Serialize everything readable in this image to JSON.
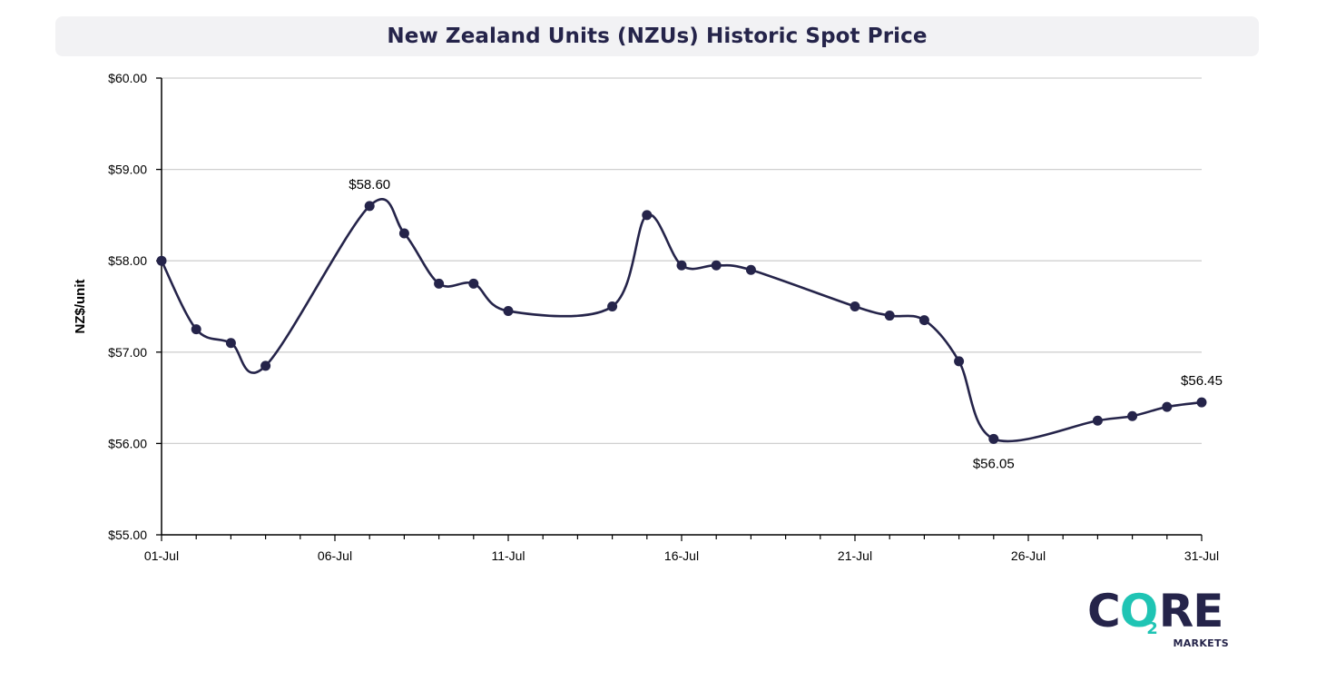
{
  "chart_data": {
    "type": "line",
    "title": "New Zealand Units (NZUs) Historic Spot Price",
    "ylabel": "NZ$/unit",
    "xlabel": "",
    "ylim": [
      55,
      60
    ],
    "xlim": [
      1,
      31
    ],
    "y_ticks": [
      "$55.00",
      "$56.00",
      "$57.00",
      "$58.00",
      "$59.00",
      "$60.00"
    ],
    "x_ticks": [
      {
        "day": 1,
        "label": "01-Jul"
      },
      {
        "day": 6,
        "label": "06-Jul"
      },
      {
        "day": 11,
        "label": "11-Jul"
      },
      {
        "day": 16,
        "label": "16-Jul"
      },
      {
        "day": 21,
        "label": "21-Jul"
      },
      {
        "day": 26,
        "label": "26-Jul"
      },
      {
        "day": 31,
        "label": "31-Jul"
      }
    ],
    "grid": true,
    "smooth": true,
    "line_color": "#25244a",
    "series": [
      {
        "points": [
          {
            "day": 1,
            "value": 58.0
          },
          {
            "day": 2,
            "value": 57.25
          },
          {
            "day": 3,
            "value": 57.1
          },
          {
            "day": 4,
            "value": 56.85
          },
          {
            "day": 7,
            "value": 58.6
          },
          {
            "day": 8,
            "value": 58.3
          },
          {
            "day": 9,
            "value": 57.75
          },
          {
            "day": 10,
            "value": 57.75
          },
          {
            "day": 11,
            "value": 57.45
          },
          {
            "day": 14,
            "value": 57.5
          },
          {
            "day": 15,
            "value": 58.5
          },
          {
            "day": 16,
            "value": 57.95
          },
          {
            "day": 17,
            "value": 57.95
          },
          {
            "day": 18,
            "value": 57.9
          },
          {
            "day": 21,
            "value": 57.5
          },
          {
            "day": 22,
            "value": 57.4
          },
          {
            "day": 23,
            "value": 57.35
          },
          {
            "day": 24,
            "value": 56.9
          },
          {
            "day": 25,
            "value": 56.05
          },
          {
            "day": 28,
            "value": 56.25
          },
          {
            "day": 29,
            "value": 56.3
          },
          {
            "day": 30,
            "value": 56.4
          },
          {
            "day": 31,
            "value": 56.45
          }
        ]
      }
    ],
    "annotations": [
      {
        "day": 7,
        "value": 58.6,
        "text": "$58.60",
        "position": "above"
      },
      {
        "day": 25,
        "value": 56.05,
        "text": "$56.05",
        "position": "below"
      },
      {
        "day": 31,
        "value": 56.45,
        "text": "$56.45",
        "position": "above"
      }
    ]
  },
  "logo": {
    "core_c": "C",
    "core_o": "O",
    "core_sub": "2",
    "core_re": "RE",
    "markets": "MARKETS",
    "brand_navy": "#25244a",
    "brand_teal": "#1fc4b4"
  }
}
